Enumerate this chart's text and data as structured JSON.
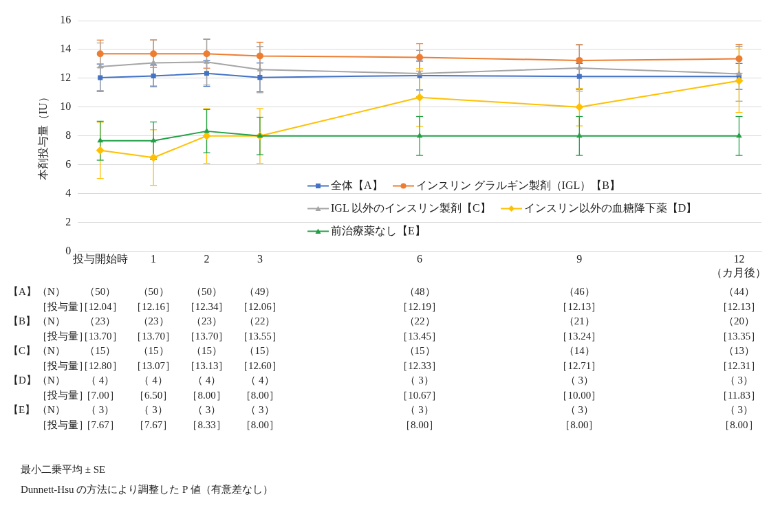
{
  "chart_data": {
    "type": "line",
    "ylabel": "本剤投与量（IU）",
    "xlim": [
      -0.42,
      12.42
    ],
    "xticks": [
      {
        "value": 0,
        "label": "投与開始時"
      },
      1,
      2,
      3,
      6,
      9,
      {
        "value": 12,
        "label": "12\n（カ月後）"
      }
    ],
    "ylim": [
      0,
      16
    ],
    "yticks": [
      0,
      2,
      4,
      6,
      8,
      10,
      12,
      14,
      16
    ],
    "grid": "y",
    "legend": "bottom right",
    "x": [
      0,
      1,
      2,
      3,
      6,
      9,
      12
    ],
    "series": [
      {
        "name": "全体【A】",
        "color": "#4472c4",
        "marker": "square",
        "values": [
          12.04,
          12.16,
          12.34,
          12.06,
          12.19,
          12.13,
          12.13
        ],
        "errors": [
          0.95,
          0.75,
          0.9,
          1.0,
          1.0,
          0.9,
          0.9
        ]
      },
      {
        "name": "インスリン グラルギン製剤（IGL）【B】",
        "color": "#ed7d31",
        "marker": "circle",
        "values": [
          13.7,
          13.7,
          13.7,
          13.55,
          13.45,
          13.24,
          13.35
        ],
        "errors": [
          0.95,
          0.95,
          1.0,
          0.95,
          0.95,
          1.1,
          1.0
        ]
      },
      {
        "name": "IGL 以外のインスリン製剤【C】",
        "color": "#a5a5a5",
        "marker": "triangle",
        "values": [
          12.8,
          13.07,
          13.13,
          12.6,
          12.33,
          12.71,
          12.31
        ],
        "errors": [
          1.65,
          1.6,
          1.6,
          1.6,
          1.6,
          1.6,
          1.9
        ]
      },
      {
        "name": "インスリン以外の血糖降下薬【D】",
        "color": "#ffc000",
        "marker": "diamond",
        "values": [
          7.0,
          6.5,
          8.0,
          8.0,
          10.67,
          10.0,
          11.83
        ],
        "errors": [
          1.95,
          1.93,
          1.9,
          1.9,
          2.0,
          1.3,
          2.2
        ]
      },
      {
        "name": "前治療薬なし【E】",
        "color": "#22a046",
        "marker": "triangle",
        "values": [
          7.67,
          7.67,
          8.33,
          8.0,
          8.0,
          8.0,
          8.0
        ],
        "errors": [
          1.35,
          1.3,
          1.5,
          1.3,
          1.35,
          1.35,
          1.35
        ]
      }
    ],
    "annotations": [
      "【A】",
      "（N）",
      "（50）",
      "（50）",
      "（50）",
      "（49）",
      "（48）",
      "（46）",
      "（44）",
      "［投与量］",
      "［12.04］",
      "［12.16］",
      "［12.34］",
      "［12.06］",
      "［12.19］",
      "［12.13］",
      "［12.13］",
      "【B】",
      "（N）",
      "（23）",
      "（23）",
      "（23）",
      "（22）",
      "（22）",
      "（21）",
      "（20）",
      "［投与量］",
      "［13.70］",
      "［13.70］",
      "［13.70］",
      "［13.55］",
      "［13.45］",
      "［13.24］",
      "［13.35］",
      "【C】",
      "（N）",
      "（15）",
      "（15）",
      "（15）",
      "（15）",
      "（15）",
      "（14）",
      "（13）",
      "［投与量］",
      "［12.80］",
      "［13.07］",
      "［13.13］",
      "［12.60］",
      "［12.33］",
      "［12.71］",
      "［12.31］",
      "【D】",
      "（N）",
      "（ 4）",
      "（ 4）",
      "（ 4）",
      "（ 4）",
      "（ 3）",
      "（ 3）",
      "（ 3）",
      "［投与量］",
      "［7.00］",
      "［6.50］",
      "［8.00］",
      "［8.00］",
      "［10.67］",
      "［10.00］",
      "［11.83］",
      "【E】",
      "（N）",
      "（ 3）",
      "（ 3）",
      "（ 3）",
      "（ 3）",
      "（ 3）",
      "（ 3）",
      "（ 3）",
      "［投与量］",
      "［7.67］",
      "［7.67］",
      "［8.33］",
      "［8.00］",
      "［8.00］",
      "［8.00］",
      "［8.00］",
      "最小二乗平均 ± SE",
      "Dunnett-Hsu の方法により調整した P 値（有意差なし）"
    ]
  }
}
